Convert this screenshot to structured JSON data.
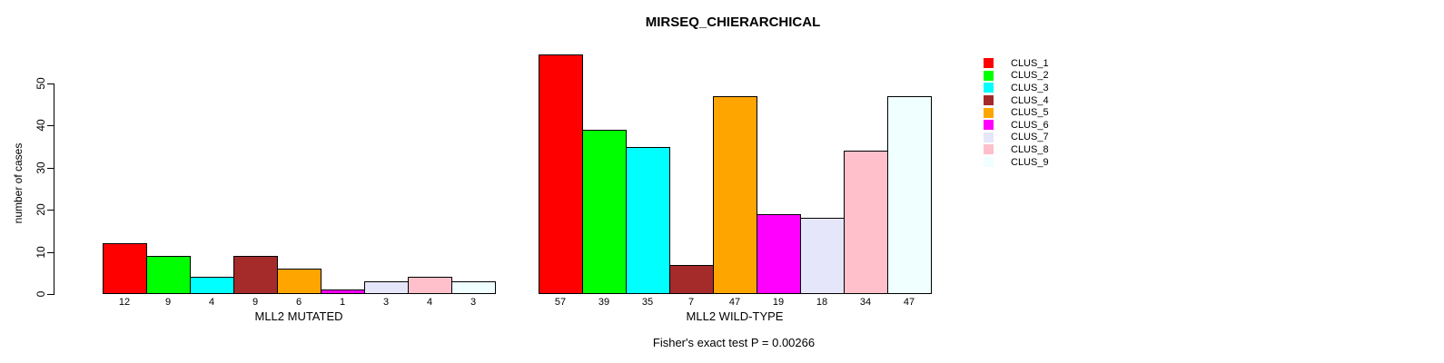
{
  "chart_data": {
    "type": "bar",
    "title": "MIRSEQ_CHIERARCHICAL",
    "ylabel": "number of cases",
    "ylim": [
      0,
      50
    ],
    "yticks": [
      0,
      10,
      20,
      30,
      40,
      50
    ],
    "grid": false,
    "legend_position": "right",
    "caption": "Fisher's exact test P = 0.00266",
    "clusters": [
      {
        "name": "CLUS_1",
        "color": "#FF0000"
      },
      {
        "name": "CLUS_2",
        "color": "#00FF00"
      },
      {
        "name": "CLUS_3",
        "color": "#00FFFF"
      },
      {
        "name": "CLUS_4",
        "color": "#A52A2A"
      },
      {
        "name": "CLUS_5",
        "color": "#FFA500"
      },
      {
        "name": "CLUS_6",
        "color": "#FF00FF"
      },
      {
        "name": "CLUS_7",
        "color": "#E6E6FA"
      },
      {
        "name": "CLUS_8",
        "color": "#FFC0CB"
      },
      {
        "name": "CLUS_9",
        "color": "#F0FFFF"
      }
    ],
    "groups": [
      {
        "label": "MLL2 MUTATED",
        "values": [
          12,
          9,
          4,
          9,
          6,
          1,
          3,
          4,
          3
        ]
      },
      {
        "label": "MLL2 WILD-TYPE",
        "values": [
          57,
          39,
          35,
          7,
          47,
          19,
          18,
          34,
          47
        ]
      }
    ]
  }
}
